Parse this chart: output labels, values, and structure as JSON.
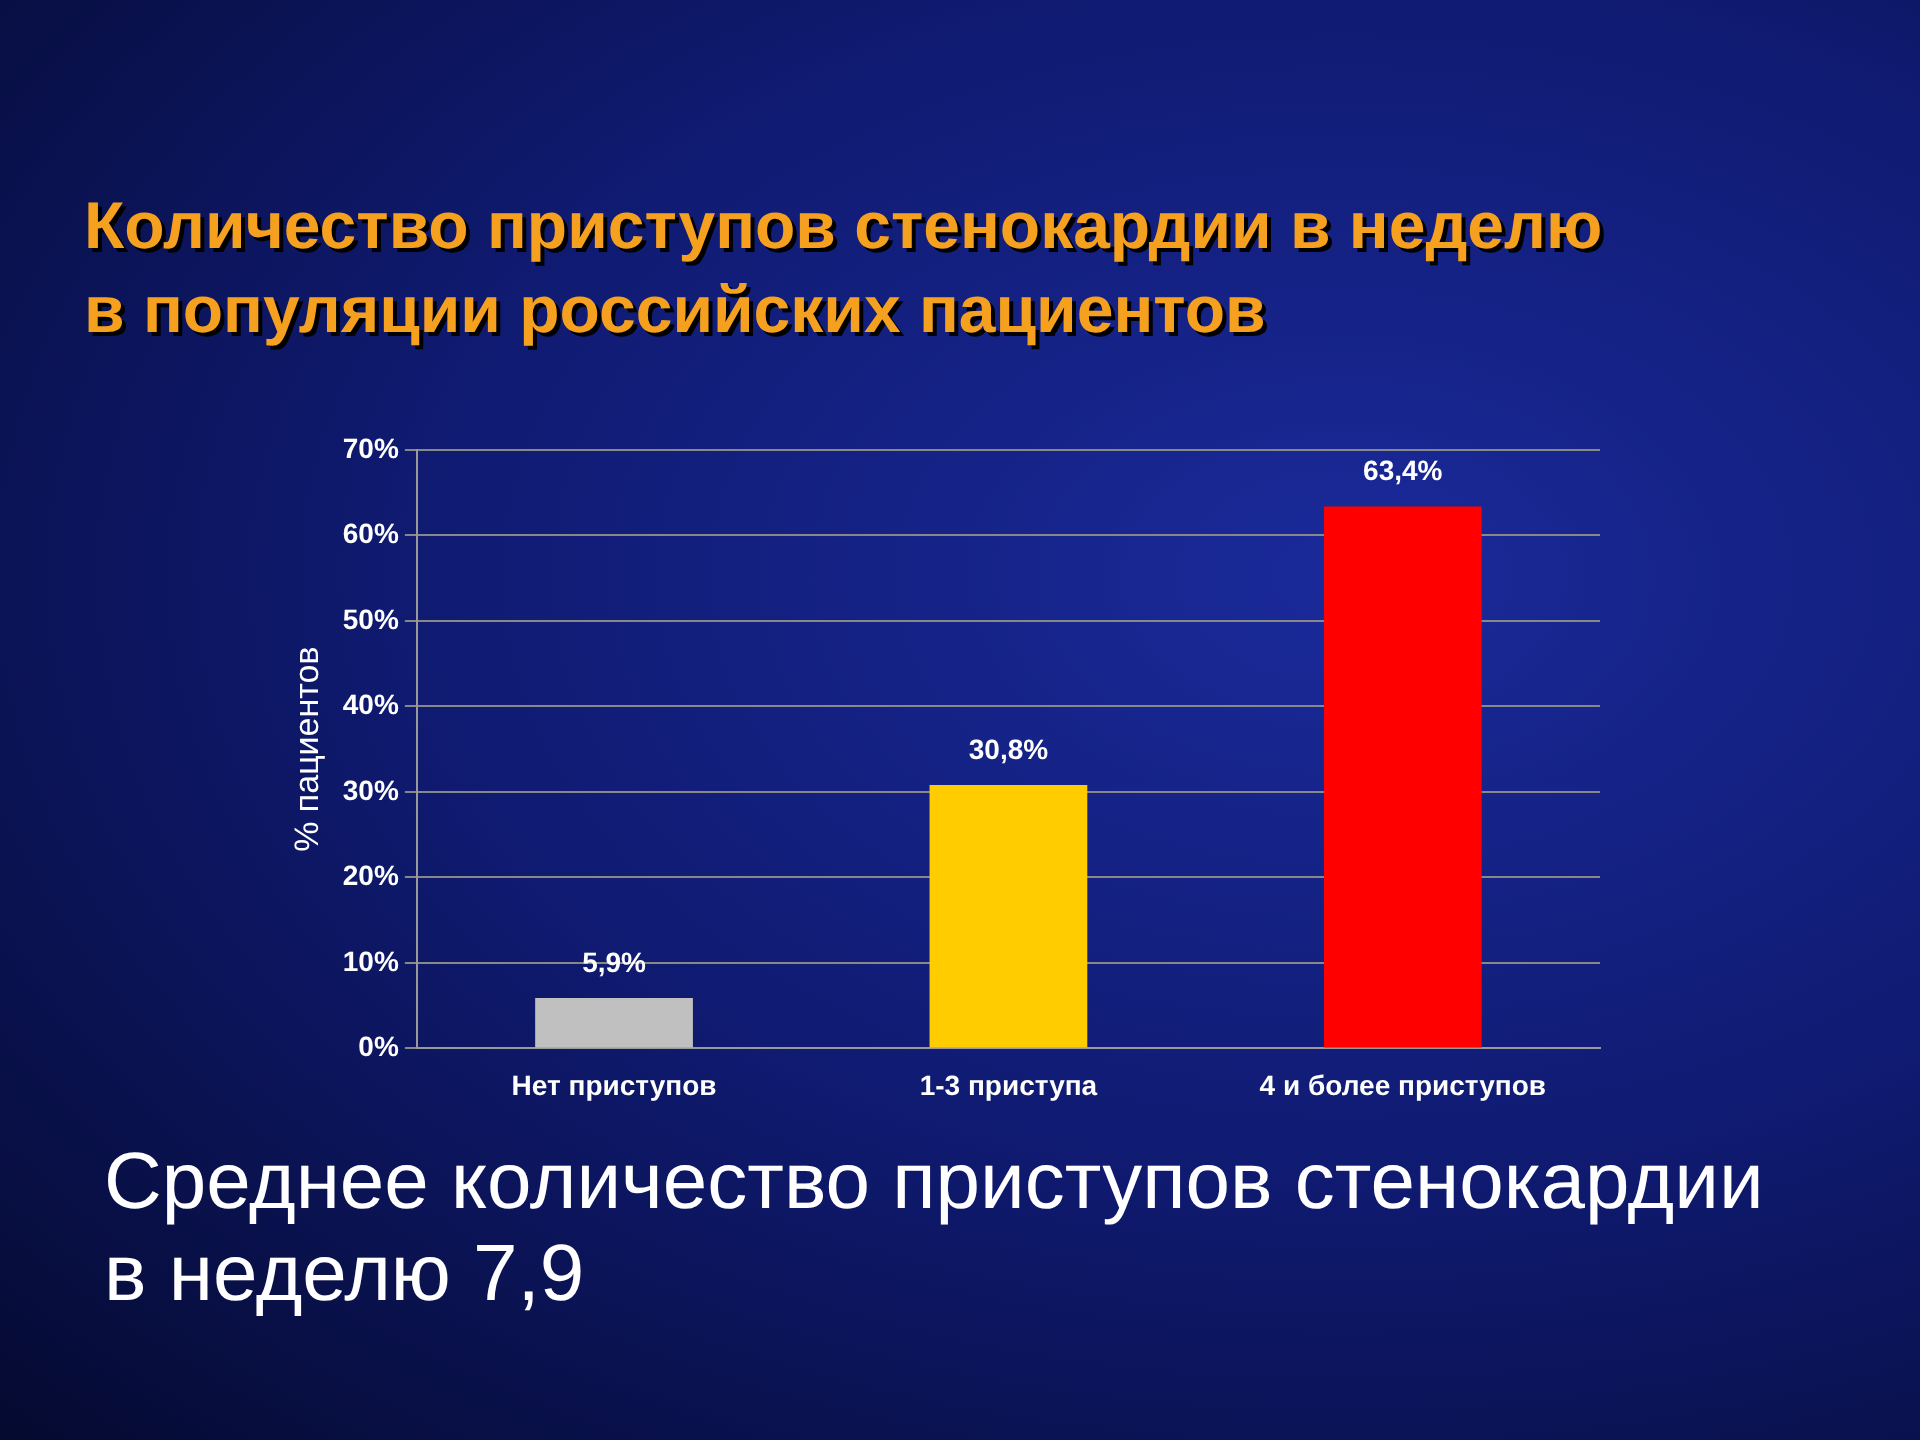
{
  "chart_data": {
    "type": "bar",
    "title": "Количество приступов стенокардии в неделю\nв популяции российских пациентов",
    "ylabel": "% пациентов",
    "categories": [
      "Нет приступов",
      "1-3 приступа",
      "4 и более приступов"
    ],
    "values": [
      5.9,
      30.8,
      63.4
    ],
    "colors": [
      "#c0c0c0",
      "#ffcc00",
      "#ff0000"
    ],
    "value_labels": [
      "5,9%",
      "30,8%",
      "63,4%"
    ],
    "ylim": [
      0,
      70
    ],
    "yticks": [
      {
        "value": 0,
        "label": "0%"
      },
      {
        "value": 10,
        "label": "10%"
      },
      {
        "value": 20,
        "label": "20%"
      },
      {
        "value": 30,
        "label": "30%"
      },
      {
        "value": 40,
        "label": "40%"
      },
      {
        "value": 50,
        "label": "50%"
      },
      {
        "value": 60,
        "label": "60%"
      },
      {
        "value": 70,
        "label": "70%"
      }
    ],
    "grid": "y",
    "annotations": [
      "Среднее количество приступов стенокардии в неделю 7,9"
    ]
  }
}
